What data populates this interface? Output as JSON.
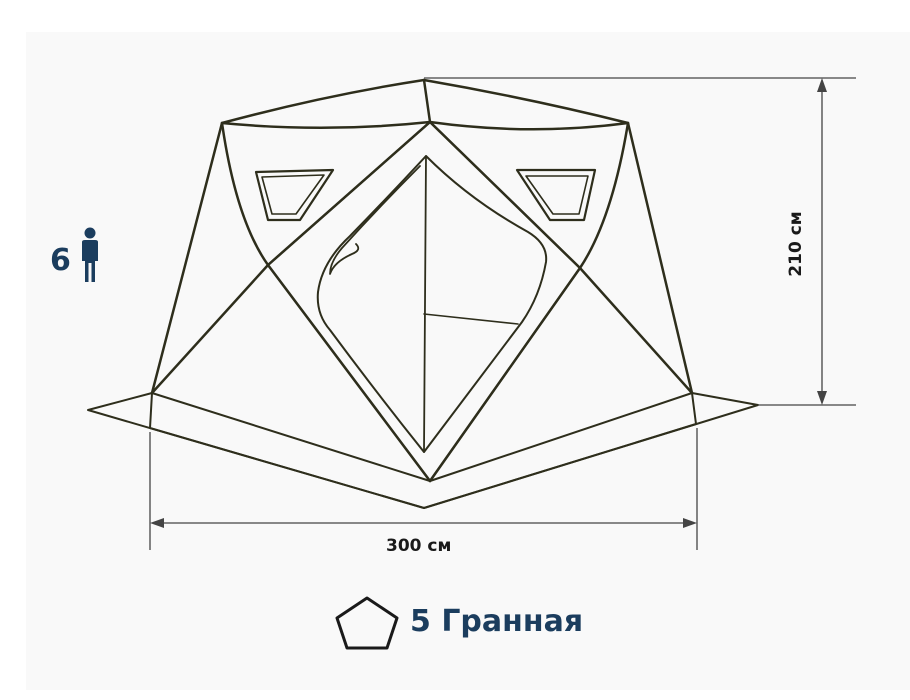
{
  "dimensions": {
    "width_label": "300 см",
    "height_label": "210 см"
  },
  "capacity": {
    "count": "6",
    "icon": "person-icon"
  },
  "shape": {
    "label": "5 Гранная",
    "icon": "pentagon-icon"
  },
  "colors": {
    "tent_outline": "#2e2e1c",
    "dimension_line": "#444444",
    "accent_text": "#1b3d5e"
  }
}
